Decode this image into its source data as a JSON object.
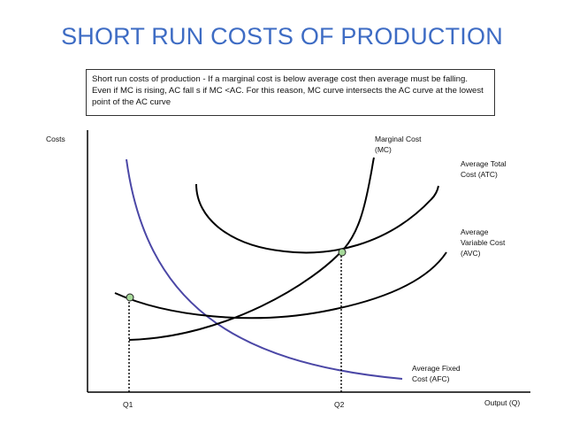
{
  "slide": {
    "title": "SHORT RUN COSTS OF PRODUCTION",
    "note": "Short run costs of production - If a marginal cost is below average cost then average must be falling. Even if MC is rising, AC fall s if MC <AC. For this reason, MC curve intersects the AC curve at the lowest point of the AC curve"
  },
  "diagram": {
    "ylabel": "Costs",
    "xlabel": "Output (Q)",
    "xticks": [
      "Q1",
      "Q2"
    ],
    "curves": {
      "mc": {
        "line1": "Marginal Cost",
        "line2": "(MC)",
        "color": "#000000"
      },
      "atc": {
        "line1": "Average Total",
        "line2": "Cost (ATC)",
        "color": "#000000"
      },
      "avc": {
        "line1": "Average",
        "line2": "Variable Cost",
        "line3": "(AVC)",
        "color": "#000000"
      },
      "afc": {
        "line1": "Average Fixed",
        "line2": "Cost (AFC)",
        "color": "#4b47a6"
      }
    },
    "marker_color": "#a6d99a"
  }
}
